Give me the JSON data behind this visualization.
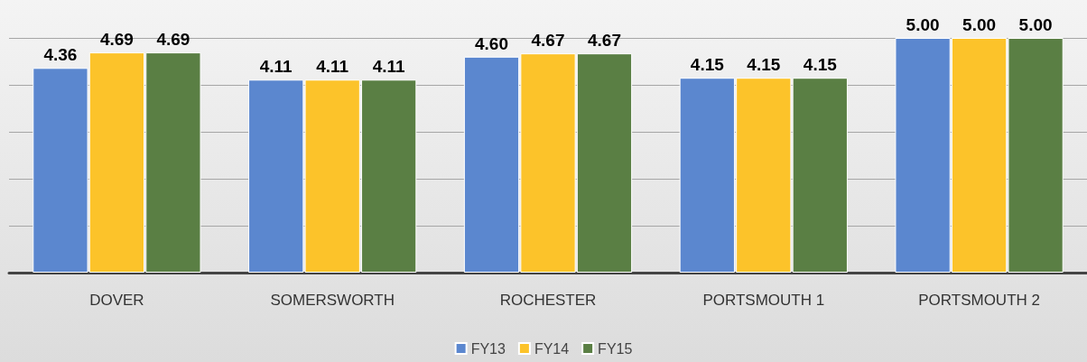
{
  "chart_data": {
    "type": "bar",
    "categories": [
      "DOVER",
      "SOMERSWORTH",
      "ROCHESTER",
      "PORTSMOUTH 1",
      "PORTSMOUTH 2"
    ],
    "series": [
      {
        "name": "FY13",
        "color": "#5b87cf",
        "values": [
          4.36,
          4.11,
          4.6,
          4.15,
          5.0
        ],
        "value_labels": [
          "4.36",
          "4.11",
          "4.60",
          "4.15",
          "5.00"
        ]
      },
      {
        "name": "FY14",
        "color": "#fcc32a",
        "values": [
          4.69,
          4.11,
          4.67,
          4.15,
          5.0
        ],
        "value_labels": [
          "4.69",
          "4.11",
          "4.67",
          "4.15",
          "5.00"
        ]
      },
      {
        "name": "FY15",
        "color": "#5a7f44",
        "values": [
          4.69,
          4.11,
          4.67,
          4.15,
          5.0
        ],
        "value_labels": [
          "4.69",
          "4.11",
          "4.67",
          "4.15",
          "5.00"
        ]
      }
    ],
    "ylim": [
      0,
      5
    ],
    "yticks": [
      {
        "value": 0,
        "label": null
      },
      {
        "value": 1,
        "label": null
      },
      {
        "value": 2,
        "label": null
      },
      {
        "value": 3,
        "label": null
      },
      {
        "value": 4,
        "label": null
      },
      {
        "value": 5,
        "label": null
      }
    ],
    "tick_labels": "x",
    "grid": "y",
    "legend": "bottom"
  }
}
